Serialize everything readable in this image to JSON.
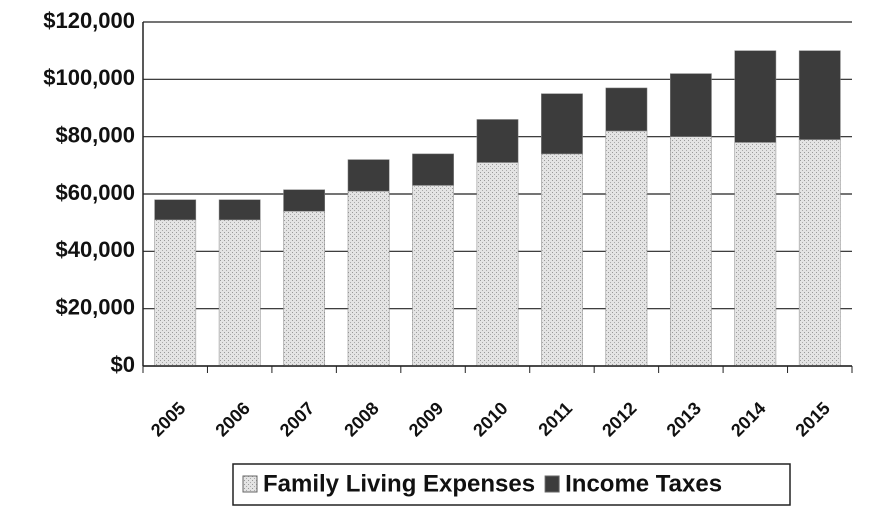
{
  "chart_data": {
    "type": "stacked-bar",
    "categories": [
      "2005",
      "2006",
      "2007",
      "2008",
      "2009",
      "2010",
      "2011",
      "2012",
      "2013",
      "2014",
      "2015"
    ],
    "series": [
      {
        "name": "Family Living Expenses",
        "color": "#d6d6d6",
        "values": [
          51000,
          51000,
          54000,
          61000,
          63000,
          71000,
          74000,
          82000,
          80000,
          78000,
          79000
        ]
      },
      {
        "name": "Income Taxes",
        "color": "#3c3c3c",
        "values": [
          7000,
          7000,
          7500,
          11000,
          11000,
          15000,
          21000,
          15000,
          22000,
          32000,
          31000
        ]
      }
    ],
    "ylim": [
      0,
      120000
    ],
    "yticks": [
      {
        "value": 0,
        "label": "$0"
      },
      {
        "value": 20000,
        "label": "$20,000"
      },
      {
        "value": 40000,
        "label": "$40,000"
      },
      {
        "value": 60000,
        "label": "$60,000"
      },
      {
        "value": 80000,
        "label": "$80,000"
      },
      {
        "value": 100000,
        "label": "$100,000"
      },
      {
        "value": 120000,
        "label": "$120,000"
      }
    ],
    "grid": true,
    "legend": "bottom"
  }
}
